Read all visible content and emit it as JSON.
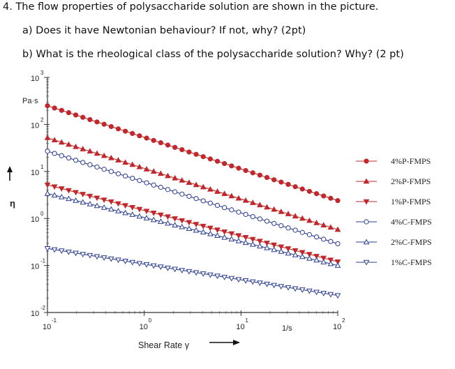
{
  "question": {
    "title": "4. The flow properties of polysaccharide solution are shown in the picture.",
    "part_a": "a)  Does it have Newtonian behaviour? If not, why? (2pt)",
    "part_b": "b)  What is the rheological class of the polysaccharide solution? Why? (2 pt)"
  },
  "chart_data": {
    "type": "line",
    "title": "",
    "xlabel": "Shear Rate γ",
    "xunit": "1/s",
    "ylabel": "η",
    "yunit": "Pa·s",
    "xscale": "log",
    "yscale": "log",
    "xlim": [
      0.1,
      100
    ],
    "ylim": [
      0.01,
      1000
    ],
    "x_ticks": [
      "10^-1",
      "10^0",
      "10^1",
      "10^2"
    ],
    "y_ticks": [
      "10^-2",
      "10^-1",
      "10^0",
      "10^1",
      "10^2",
      "10^3"
    ],
    "grid": false,
    "legend_position": "right",
    "series": [
      {
        "name": "4%P-FMPS",
        "marker": "circle-filled",
        "color": "#c0282b",
        "x_range": [
          0.1,
          100
        ],
        "y_range": [
          250,
          2.4
        ]
      },
      {
        "name": "2%P-FMPS",
        "marker": "triangle-up-filled",
        "color": "#c0282b",
        "x_range": [
          0.1,
          100
        ],
        "y_range": [
          52,
          0.58
        ]
      },
      {
        "name": "1%P-FMPS",
        "marker": "triangle-down-filled",
        "color": "#c0282b",
        "x_range": [
          0.1,
          100
        ],
        "y_range": [
          5.2,
          0.12
        ]
      },
      {
        "name": "4%C-FMPS",
        "marker": "circle-open",
        "color": "#2c3e8f",
        "x_range": [
          0.1,
          100
        ],
        "y_range": [
          27,
          0.29
        ]
      },
      {
        "name": "2%C-FMPS",
        "marker": "triangle-up-open",
        "color": "#2c3e8f",
        "x_range": [
          0.1,
          100
        ],
        "y_range": [
          3.4,
          0.1
        ]
      },
      {
        "name": "1%C-FMPS",
        "marker": "triangle-down-open",
        "color": "#2c3e8f",
        "x_range": [
          0.1,
          100
        ],
        "y_range": [
          0.23,
          0.023
        ]
      }
    ]
  }
}
